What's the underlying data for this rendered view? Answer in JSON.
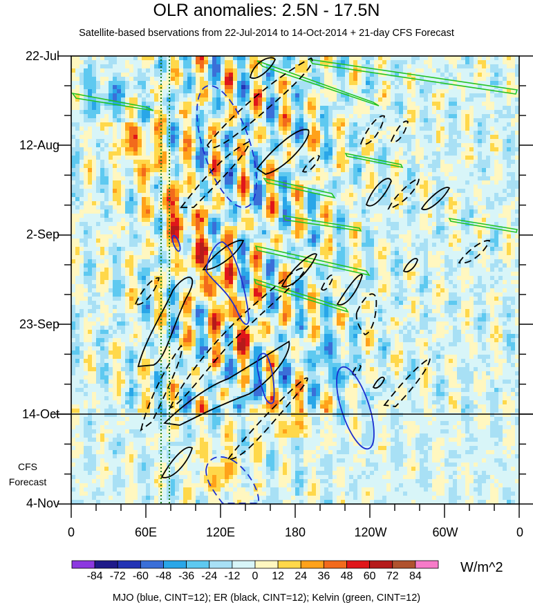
{
  "chart_data": {
    "type": "heatmap",
    "title": "OLR anomalies: 2.5N - 17.5N",
    "subtitle": "Satellite-based bservations from 22-Jul-2014 to 14-Oct-2014 + 21-day CFS Forecast",
    "y_ticks": [
      "22-Jul",
      "12-Aug",
      "2-Sep",
      "23-Sep",
      "14-Oct",
      "4-Nov"
    ],
    "x_ticks": [
      "0",
      "60E",
      "120E",
      "180",
      "120W",
      "60W",
      "0"
    ],
    "forecast_label": [
      "CFS",
      "Forecast"
    ],
    "forecast_start": "14-Oct",
    "colorbar": {
      "labels": [
        "-84",
        "-72",
        "-60",
        "-48",
        "-36",
        "-24",
        "-12",
        "0",
        "12",
        "24",
        "36",
        "48",
        "60",
        "72",
        "84"
      ],
      "colors": [
        "#8c38e0",
        "#1f1a8a",
        "#2333b5",
        "#3a6fd8",
        "#29a6e8",
        "#5ec9f0",
        "#a8e0f5",
        "#d8f5f8",
        "#fff7c0",
        "#ffd84a",
        "#ffa21a",
        "#f26a1c",
        "#e0161a",
        "#b51a1a",
        "#b0522e",
        "#f77bc8"
      ],
      "unit": "W/m^2"
    },
    "caption": "MJO (blue, CINT=12); ER (black, CINT=12); Kelvin (green, CINT=12)",
    "contour_colors": {
      "mjo": "#1c2fd0",
      "er": "#000000",
      "kelvin": "#22c322",
      "reference_line": "#1a7a1a"
    }
  }
}
